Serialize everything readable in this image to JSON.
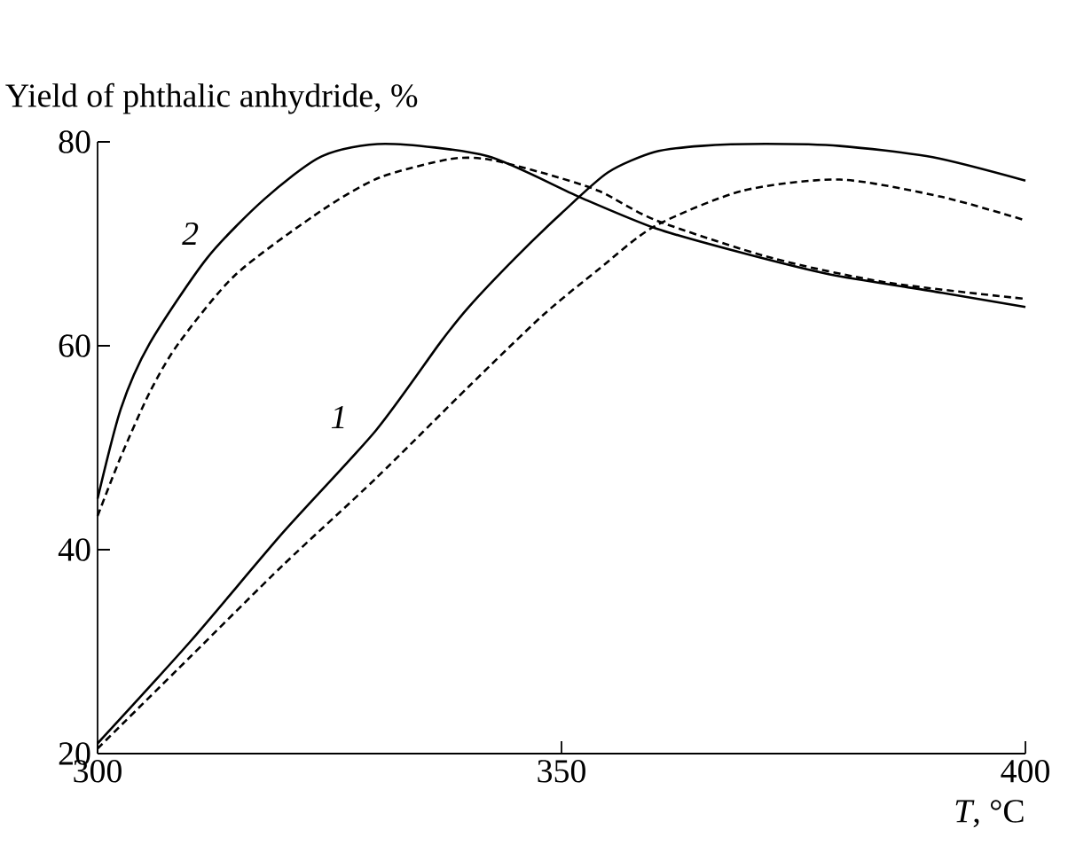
{
  "chart_data": {
    "type": "line",
    "xlabel": "*T*, °C",
    "ylabel": "Yield of phthalic anhydride, %",
    "xlim": [
      300,
      400
    ],
    "ylim": [
      20,
      80
    ],
    "xticks": [
      300,
      350,
      400
    ],
    "yticks": [
      20,
      40,
      60,
      80
    ],
    "grid": false,
    "marker": "none",
    "series": [
      {
        "color": "#000000",
        "line_style": "solid",
        "x": [
          300,
          310,
          320,
          330,
          337,
          340,
          345,
          350,
          355,
          360,
          365,
          372,
          380,
          390,
          400
        ],
        "values": [
          21,
          31,
          41.7,
          51.7,
          60.4,
          63.8,
          68.6,
          73,
          77,
          79,
          79.6,
          79.8,
          79.6,
          78.5,
          76.2
        ]
      },
      {
        "color": "#000000",
        "line_style": "dashed",
        "x": [
          300,
          310,
          320,
          330,
          340,
          348,
          354,
          360,
          369.5,
          380,
          391,
          400
        ],
        "values": [
          20.5,
          29.5,
          38.5,
          47,
          56,
          63,
          67.5,
          71.7,
          75.2,
          76.3,
          74.6,
          72.3
        ]
      },
      {
        "color": "#000000",
        "line_style": "solid",
        "x": [
          300,
          302.5,
          305.6,
          311.8,
          318,
          324.2,
          331,
          342,
          351.9,
          360.2,
          369.5,
          378.9,
          391,
          400
        ],
        "values": [
          45,
          53.8,
          60.2,
          68.6,
          74.4,
          78.6,
          79.8,
          78.6,
          74.6,
          71.5,
          69.1,
          67,
          65.2,
          63.8
        ]
      },
      {
        "color": "#000000",
        "line_style": "dashed",
        "x": [
          300,
          302.5,
          305.6,
          308.7,
          314.9,
          324.2,
          330.4,
          337.9,
          342,
          347.8,
          354,
          360.2,
          372.7,
          385.1,
          400
        ],
        "values": [
          43.3,
          49.1,
          55.4,
          60.2,
          67,
          73.3,
          76.5,
          78.3,
          78.3,
          77,
          75.2,
          72.3,
          68.6,
          66.2,
          64.6
        ]
      }
    ],
    "annotations": [
      "*1*",
      "*2*"
    ]
  }
}
